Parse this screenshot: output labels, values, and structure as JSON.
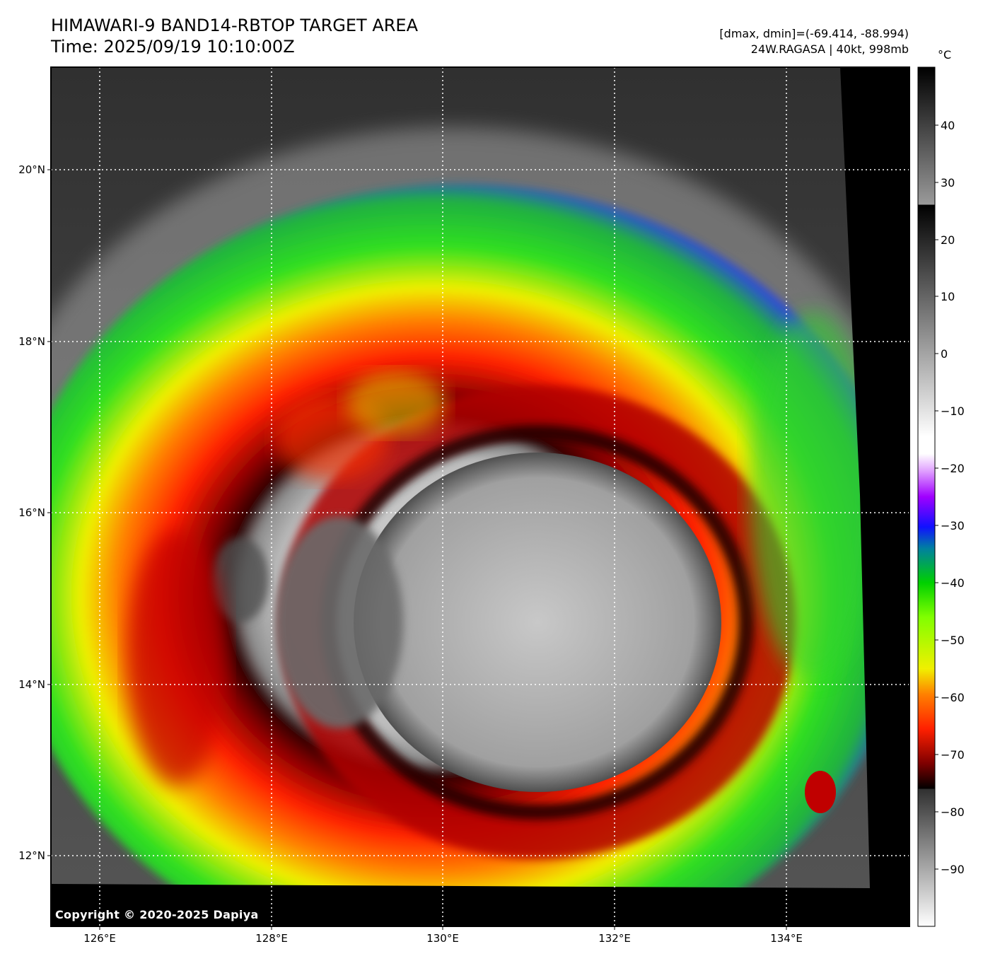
{
  "header": {
    "title_line1": "HIMAWARI-9 BAND14-RBTOP TARGET AREA",
    "title_line2": "Time: 2025/09/19 10:10:00Z",
    "data_range": "[dmax, dmin]=(-69.414, -88.994)",
    "storm_info": "24W.RAGASA | 40kt, 998mb"
  },
  "map": {
    "lat_ticks": [
      "20°N",
      "18°N",
      "16°N",
      "14°N",
      "12°N"
    ],
    "lon_ticks": [
      "126°E",
      "128°E",
      "130°E",
      "132°E",
      "134°E"
    ],
    "gridlines": "dotted white",
    "storm_center": {
      "lat": 14.9,
      "lon": 130.9
    }
  },
  "colorbar": {
    "unit": "°C",
    "tick_labels": [
      "40",
      "30",
      "20",
      "10",
      "0",
      "−10",
      "−20",
      "−30",
      "−40",
      "−50",
      "−60",
      "−70",
      "−80",
      "−90"
    ],
    "range": [
      -100,
      50
    ],
    "colors": {
      "warm_gray_top": "#000000",
      "cold_cloud_white": "#ffffff",
      "purple": "#a000ff",
      "blue": "#1040ff",
      "green": "#00e000",
      "yellow": "#f0f000",
      "orange": "#ff8000",
      "red": "#ff1000",
      "dark_red": "#600000"
    }
  },
  "copyright": "Copyright © 2020-2025 Dapiya"
}
